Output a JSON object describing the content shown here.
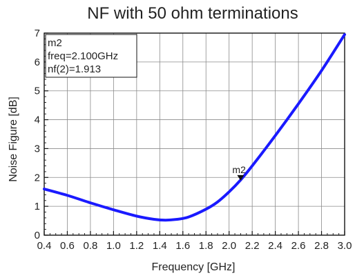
{
  "chart_data": {
    "type": "line",
    "title": "NF with 50 ohm terminations",
    "xlabel": "Frequency [GHz]",
    "ylabel": "Noise Figure [dB]",
    "xlim": [
      0.4,
      3.0
    ],
    "ylim": [
      0,
      7
    ],
    "grid": true,
    "x_ticks": [
      "0.4",
      "0.6",
      "0.8",
      "1.0",
      "1.2",
      "1.4",
      "1.6",
      "1.8",
      "2.0",
      "2.2",
      "2.4",
      "2.6",
      "2.8",
      "3.0"
    ],
    "y_ticks": [
      "0",
      "1",
      "2",
      "3",
      "4",
      "5",
      "6",
      "7"
    ],
    "series": [
      {
        "color": "#1a1aff",
        "x": [
          0.4,
          0.6,
          0.8,
          1.0,
          1.2,
          1.35,
          1.45,
          1.55,
          1.65,
          1.8,
          1.9,
          2.0,
          2.1,
          2.2,
          2.4,
          2.6,
          2.8,
          3.0
        ],
        "y": [
          1.6,
          1.38,
          1.12,
          0.88,
          0.66,
          0.55,
          0.52,
          0.55,
          0.63,
          0.9,
          1.15,
          1.5,
          1.913,
          2.4,
          3.45,
          4.55,
          5.7,
          6.95
        ]
      }
    ],
    "marker": {
      "name": "m2",
      "x": 2.1,
      "y": 1.913,
      "lines": [
        "m2",
        "freq=2.100GHz",
        "nf(2)=1.913"
      ]
    }
  }
}
